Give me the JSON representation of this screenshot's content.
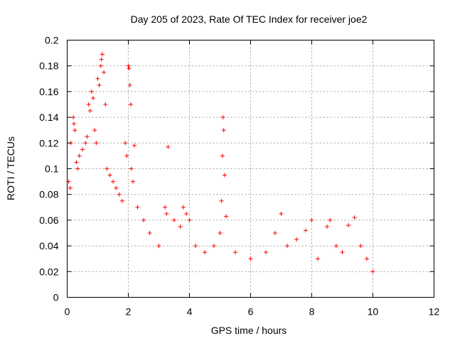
{
  "chart_data": {
    "type": "scatter",
    "title": "Day 205 of 2023, Rate Of TEC Index for receiver joe2",
    "xlabel": "GPS time / hours",
    "ylabel": "ROTI / TECUs",
    "xlim": [
      0,
      12
    ],
    "ylim": [
      0,
      0.2
    ],
    "x_ticks": [
      0,
      2,
      4,
      6,
      8,
      10,
      12
    ],
    "x_tick_labels": [
      "0",
      "2",
      "4",
      "6",
      "8",
      "10",
      "12"
    ],
    "y_ticks": [
      0,
      0.02,
      0.04,
      0.06,
      0.08,
      0.1,
      0.12,
      0.14,
      0.16,
      0.18,
      0.2
    ],
    "y_tick_labels": [
      "0",
      "0.02",
      "0.04",
      "0.06",
      "0.08",
      "0.1",
      "0.12",
      "0.14",
      "0.16",
      "0.18",
      "0.2"
    ],
    "grid": true,
    "marker": "+",
    "color": "#ff0000",
    "series": [
      {
        "name": "ROTI",
        "points": [
          [
            0.05,
            0.09
          ],
          [
            0.1,
            0.085
          ],
          [
            0.12,
            0.12
          ],
          [
            0.2,
            0.14
          ],
          [
            0.22,
            0.135
          ],
          [
            0.25,
            0.13
          ],
          [
            0.3,
            0.105
          ],
          [
            0.35,
            0.1
          ],
          [
            0.4,
            0.11
          ],
          [
            0.5,
            0.115
          ],
          [
            0.6,
            0.12
          ],
          [
            0.65,
            0.125
          ],
          [
            0.7,
            0.15
          ],
          [
            0.75,
            0.145
          ],
          [
            0.8,
            0.16
          ],
          [
            0.85,
            0.155
          ],
          [
            0.9,
            0.13
          ],
          [
            0.95,
            0.12
          ],
          [
            1.0,
            0.17
          ],
          [
            1.05,
            0.165
          ],
          [
            1.1,
            0.18
          ],
          [
            1.12,
            0.185
          ],
          [
            1.15,
            0.189
          ],
          [
            1.2,
            0.175
          ],
          [
            1.25,
            0.15
          ],
          [
            1.3,
            0.1
          ],
          [
            1.4,
            0.095
          ],
          [
            1.5,
            0.09
          ],
          [
            1.6,
            0.085
          ],
          [
            1.7,
            0.08
          ],
          [
            1.8,
            0.075
          ],
          [
            1.9,
            0.12
          ],
          [
            1.95,
            0.11
          ],
          [
            2.0,
            0.18
          ],
          [
            2.02,
            0.178
          ],
          [
            2.05,
            0.165
          ],
          [
            2.08,
            0.15
          ],
          [
            2.1,
            0.1
          ],
          [
            2.15,
            0.09
          ],
          [
            2.2,
            0.118
          ],
          [
            2.3,
            0.07
          ],
          [
            2.5,
            0.06
          ],
          [
            2.7,
            0.05
          ],
          [
            3.0,
            0.04
          ],
          [
            3.2,
            0.07
          ],
          [
            3.25,
            0.065
          ],
          [
            3.3,
            0.117
          ],
          [
            3.5,
            0.06
          ],
          [
            3.7,
            0.055
          ],
          [
            3.8,
            0.07
          ],
          [
            3.9,
            0.065
          ],
          [
            4.0,
            0.06
          ],
          [
            4.2,
            0.04
          ],
          [
            4.5,
            0.035
          ],
          [
            4.8,
            0.04
          ],
          [
            5.0,
            0.05
          ],
          [
            5.05,
            0.075
          ],
          [
            5.08,
            0.11
          ],
          [
            5.1,
            0.14
          ],
          [
            5.12,
            0.13
          ],
          [
            5.15,
            0.095
          ],
          [
            5.2,
            0.063
          ],
          [
            5.5,
            0.035
          ],
          [
            6.0,
            0.03
          ],
          [
            6.5,
            0.035
          ],
          [
            6.8,
            0.05
          ],
          [
            7.0,
            0.065
          ],
          [
            7.2,
            0.04
          ],
          [
            7.5,
            0.045
          ],
          [
            7.8,
            0.052
          ],
          [
            8.0,
            0.06
          ],
          [
            8.2,
            0.03
          ],
          [
            8.5,
            0.055
          ],
          [
            8.6,
            0.06
          ],
          [
            8.8,
            0.04
          ],
          [
            9.0,
            0.035
          ],
          [
            9.2,
            0.056
          ],
          [
            9.4,
            0.062
          ],
          [
            9.6,
            0.04
          ],
          [
            9.8,
            0.03
          ],
          [
            10.0,
            0.02
          ]
        ]
      }
    ]
  }
}
